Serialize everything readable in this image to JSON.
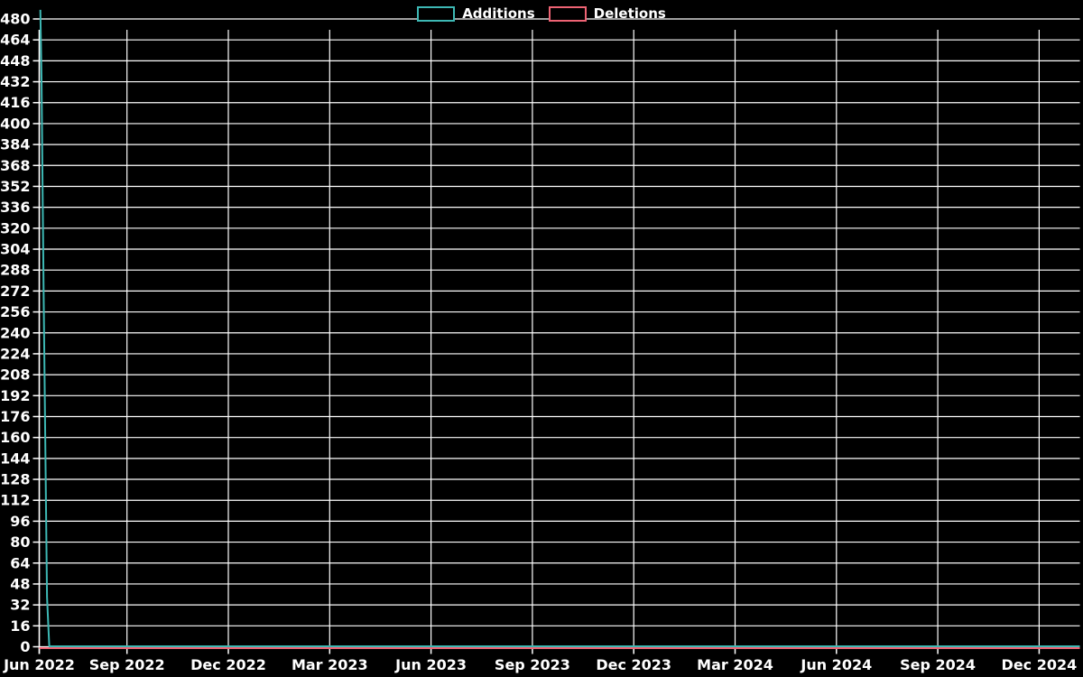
{
  "meta": {
    "background_color": "#000000",
    "grid_color": "#ffffff",
    "text_color": "#ffffff"
  },
  "legend": {
    "items": [
      {
        "label": "Additions",
        "color": "#3db8b4"
      },
      {
        "label": "Deletions",
        "color": "#ee6374"
      }
    ]
  },
  "chart_data": {
    "type": "line",
    "title": "",
    "xlabel": "",
    "ylabel": "",
    "grid": true,
    "legend_position": "top-center",
    "x_axis": {
      "start_date": "2022-06-14",
      "end_date": "2025-01-05",
      "tick_labels": [
        "Jun 2022",
        "Sep 2022",
        "Dec 2022",
        "Mar 2023",
        "Jun 2023",
        "Sep 2023",
        "Dec 2023",
        "Mar 2024",
        "Jun 2024",
        "Sep 2024",
        "Dec 2024"
      ]
    },
    "y_axis": {
      "min": 0,
      "max": 480,
      "tick_step": 16
    },
    "series": [
      {
        "name": "Deletions",
        "color": "#ee6374",
        "points": [
          [
            "2022-06-14",
            0
          ],
          [
            "2025-01-05",
            0
          ]
        ]
      },
      {
        "name": "Additions",
        "color": "#3db8b4",
        "points": [
          [
            "2022-06-15",
            487
          ],
          [
            "2022-06-16",
            435
          ],
          [
            "2022-06-18",
            267
          ],
          [
            "2022-06-21",
            38
          ],
          [
            "2022-06-23",
            0
          ],
          [
            "2025-01-05",
            0
          ]
        ]
      }
    ]
  }
}
